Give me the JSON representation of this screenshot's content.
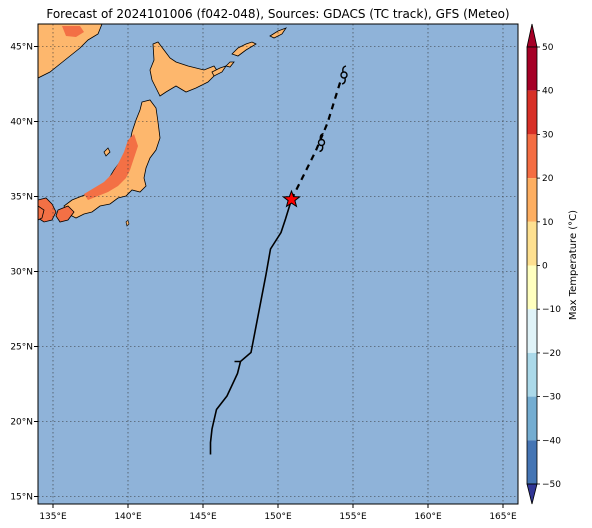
{
  "title": "Forecast of 2024101006 (f042-048), Sources: GDACS (TC track), GFS (Meteo)",
  "map": {
    "lon_range": [
      134,
      166
    ],
    "lat_range": [
      14.5,
      46.5
    ],
    "lon_ticks": [
      {
        "value": 135,
        "label": "135°E"
      },
      {
        "value": 140,
        "label": "140°E"
      },
      {
        "value": 145,
        "label": "145°E"
      },
      {
        "value": 150,
        "label": "150°E"
      },
      {
        "value": 155,
        "label": "155°E"
      },
      {
        "value": 160,
        "label": "160°E"
      },
      {
        "value": 165,
        "label": "165°E"
      }
    ],
    "lat_ticks": [
      {
        "value": 15,
        "label": "15°N"
      },
      {
        "value": 20,
        "label": "20°N"
      },
      {
        "value": 25,
        "label": "25°N"
      },
      {
        "value": 30,
        "label": "30°N"
      },
      {
        "value": 35,
        "label": "35°N"
      },
      {
        "value": 40,
        "label": "40°N"
      },
      {
        "value": 45,
        "label": "45°N"
      }
    ],
    "ocean_color": "#8fb3d9",
    "gridlines": "dotted"
  },
  "track": {
    "observed": [
      [
        145.5,
        17.8
      ],
      [
        145.5,
        18.6
      ],
      [
        145.6,
        19.5
      ],
      [
        145.9,
        20.8
      ],
      [
        146.6,
        21.7
      ],
      [
        147.3,
        23.2
      ],
      [
        147.5,
        24.0
      ],
      [
        147.1,
        24.0
      ],
      [
        147.5,
        24.0
      ],
      [
        148.2,
        24.6
      ],
      [
        149.2,
        29.8
      ],
      [
        149.5,
        31.5
      ],
      [
        150.2,
        32.6
      ],
      [
        150.5,
        33.5
      ],
      [
        150.9,
        34.8
      ]
    ],
    "forecast": [
      [
        150.9,
        34.8
      ],
      [
        151.5,
        36.0
      ],
      [
        152.5,
        38.0
      ],
      [
        153.3,
        39.9
      ],
      [
        154.2,
        42.8
      ]
    ],
    "current_position": {
      "lon": 150.9,
      "lat": 34.8,
      "color": "#ff0000"
    },
    "storm_symbols": [
      {
        "lon": 152.9,
        "lat": 38.6
      },
      {
        "lon": 154.4,
        "lat": 43.1
      }
    ]
  },
  "colorbar": {
    "label": "Max Temperature (°C)",
    "ticks": [
      "50",
      "40",
      "30",
      "20",
      "10",
      "0",
      "−10",
      "−20",
      "−30",
      "−40",
      "−50"
    ],
    "colors_top_to_bottom": [
      "#a50026",
      "#d73027",
      "#f46d43",
      "#fdae61",
      "#fee090",
      "#ffffbf",
      "#e0f3f8",
      "#abd9e9",
      "#74add1",
      "#4575b4",
      "#313695"
    ]
  },
  "land_colors": {
    "warm": "#fdb76d",
    "hot": "#f37045"
  }
}
